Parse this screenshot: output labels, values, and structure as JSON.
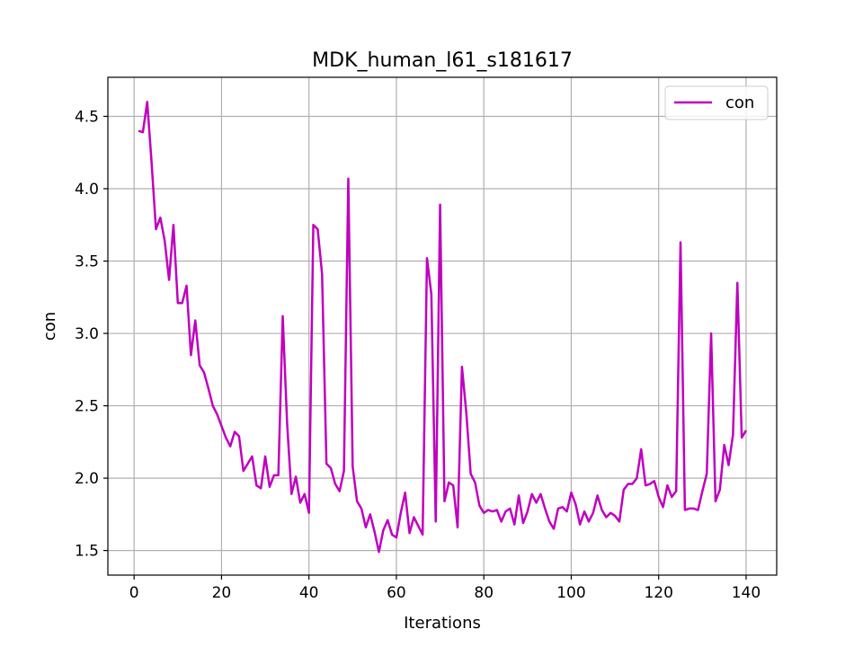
{
  "chart_data": {
    "type": "line",
    "title": "MDK_human_l61_s181617",
    "xlabel": "Iterations",
    "ylabel": "con",
    "xlim": [
      -6,
      147
    ],
    "ylim": [
      1.33,
      4.77
    ],
    "xticks": [
      0,
      20,
      40,
      60,
      80,
      100,
      120,
      140
    ],
    "yticks": [
      1.5,
      2.0,
      2.5,
      3.0,
      3.5,
      4.0,
      4.5
    ],
    "grid": true,
    "legend_position": "top-right",
    "series": [
      {
        "name": "con",
        "color": "#bf00bf",
        "x": [
          1,
          2,
          3,
          4,
          5,
          6,
          7,
          8,
          9,
          10,
          11,
          12,
          13,
          14,
          15,
          16,
          17,
          18,
          19,
          20,
          21,
          22,
          23,
          24,
          25,
          26,
          27,
          28,
          29,
          30,
          31,
          32,
          33,
          34,
          35,
          36,
          37,
          38,
          39,
          40,
          41,
          42,
          43,
          44,
          45,
          46,
          47,
          48,
          49,
          50,
          51,
          52,
          53,
          54,
          55,
          56,
          57,
          58,
          59,
          60,
          61,
          62,
          63,
          64,
          65,
          66,
          67,
          68,
          69,
          70,
          71,
          72,
          73,
          74,
          75,
          76,
          77,
          78,
          79,
          80,
          81,
          82,
          83,
          84,
          85,
          86,
          87,
          88,
          89,
          90,
          91,
          92,
          93,
          94,
          95,
          96,
          97,
          98,
          99,
          100,
          101,
          102,
          103,
          104,
          105,
          106,
          107,
          108,
          109,
          110,
          111,
          112,
          113,
          114,
          115,
          116,
          117,
          118,
          119,
          120,
          121,
          122,
          123,
          124,
          125,
          126,
          127,
          128,
          129,
          130,
          131,
          132,
          133,
          134,
          135,
          136,
          137,
          138,
          139,
          140
        ],
        "y": [
          4.4,
          4.39,
          4.6,
          4.18,
          3.72,
          3.8,
          3.64,
          3.37,
          3.75,
          3.21,
          3.21,
          3.33,
          2.85,
          3.09,
          2.78,
          2.73,
          2.62,
          2.5,
          2.44,
          2.36,
          2.28,
          2.22,
          2.32,
          2.29,
          2.05,
          2.1,
          2.15,
          1.95,
          1.93,
          2.15,
          1.94,
          2.02,
          2.02,
          3.12,
          2.38,
          1.89,
          2.01,
          1.83,
          1.89,
          1.76,
          3.75,
          3.72,
          3.41,
          2.1,
          2.07,
          1.96,
          1.91,
          2.05,
          4.07,
          2.08,
          1.84,
          1.79,
          1.66,
          1.75,
          1.63,
          1.49,
          1.64,
          1.71,
          1.61,
          1.59,
          1.76,
          1.9,
          1.62,
          1.73,
          1.67,
          1.61,
          3.52,
          3.27,
          1.7,
          3.89,
          1.84,
          1.97,
          1.95,
          1.66,
          2.77,
          2.45,
          2.03,
          1.97,
          1.81,
          1.76,
          1.78,
          1.77,
          1.78,
          1.7,
          1.77,
          1.79,
          1.68,
          1.88,
          1.69,
          1.77,
          1.89,
          1.83,
          1.89,
          1.79,
          1.7,
          1.65,
          1.79,
          1.8,
          1.77,
          1.9,
          1.82,
          1.68,
          1.77,
          1.7,
          1.76,
          1.88,
          1.78,
          1.73,
          1.76,
          1.74,
          1.7,
          1.92,
          1.96,
          1.96,
          2.0,
          2.2,
          1.95,
          1.96,
          1.98,
          1.87,
          1.8,
          1.95,
          1.87,
          1.91,
          3.63,
          1.78,
          1.79,
          1.79,
          1.78,
          1.91,
          2.03,
          3.0,
          1.84,
          1.92,
          2.23,
          2.09,
          2.3,
          3.35,
          2.28,
          2.33
        ]
      }
    ]
  }
}
